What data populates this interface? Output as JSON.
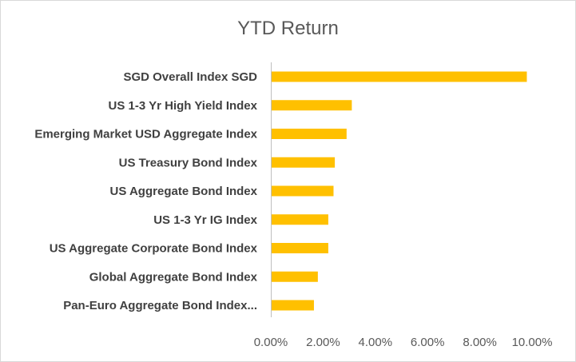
{
  "chart_data": {
    "type": "bar",
    "orientation": "horizontal",
    "title": "YTD Return",
    "categories": [
      "SGD Overall Index SGD",
      "US 1-3 Yr High Yield Index",
      "Emerging Market USD Aggregate Index",
      "US Treasury Bond Index",
      "US Aggregate Bond Index",
      "US 1-3 Yr IG Index",
      "US Aggregate Corporate Bond Index",
      "Global Aggregate Bond Index",
      "Pan-Euro Aggregate Bond Index..."
    ],
    "values": [
      9.8,
      3.1,
      2.9,
      2.45,
      2.4,
      2.2,
      2.2,
      1.8,
      1.65
    ],
    "xlim": [
      0,
      10
    ],
    "ticks": [
      "0.00%",
      "2.00%",
      "4.00%",
      "6.00%",
      "8.00%",
      "10.00%"
    ],
    "tick_values": [
      0,
      2,
      4,
      6,
      8,
      10
    ],
    "bar_color": "#ffc000",
    "grid": false,
    "legend": "none"
  }
}
